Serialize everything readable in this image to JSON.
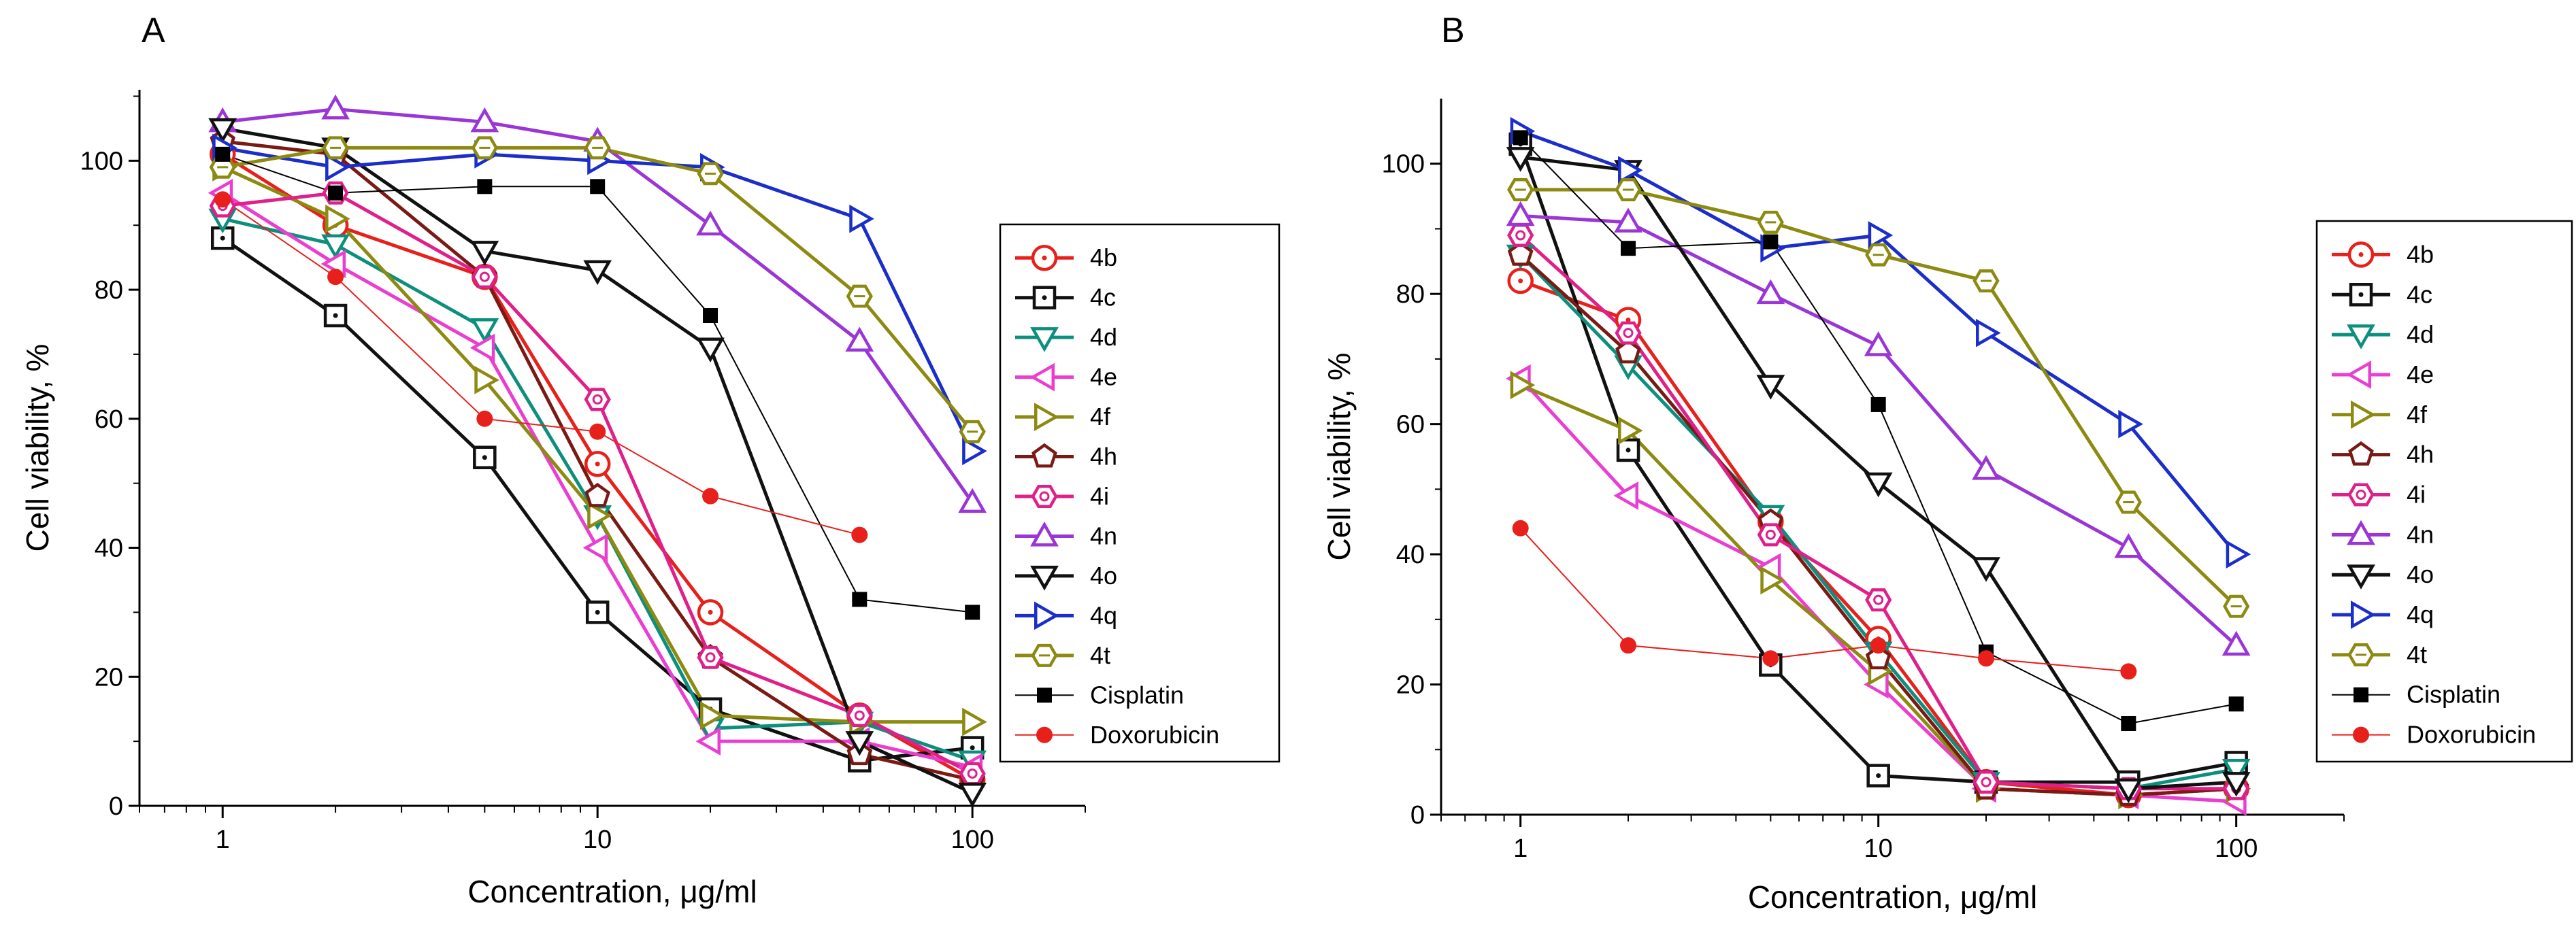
{
  "figure": {
    "panels": [
      "A",
      "B"
    ]
  },
  "styles": {
    "4b": {
      "color": "#e8201c",
      "marker": "circle-dot",
      "width": 5
    },
    "4c": {
      "color": "#111111",
      "marker": "square-dot",
      "width": 5
    },
    "4d": {
      "color": "#0d8f7e",
      "marker": "tri-down",
      "width": 5
    },
    "4e": {
      "color": "#ea3ed1",
      "marker": "tri-left",
      "width": 5
    },
    "4f": {
      "color": "#8c8a10",
      "marker": "tri-right",
      "width": 5
    },
    "4h": {
      "color": "#7a1a14",
      "marker": "pentagon",
      "width": 5
    },
    "4i": {
      "color": "#e0208a",
      "marker": "hexagon-star",
      "width": 5
    },
    "4n": {
      "color": "#9a35d6",
      "marker": "tri-up",
      "width": 5
    },
    "4o": {
      "color": "#111111",
      "marker": "tri-down",
      "width": 5
    },
    "4q": {
      "color": "#1b2ec9",
      "marker": "tri-right",
      "width": 5
    },
    "4t": {
      "color": "#8c8a10",
      "marker": "hexagon",
      "width": 5
    },
    "Cisplatin": {
      "color": "#000000",
      "marker": "filled-square",
      "width": 2
    },
    "Doxorubicin": {
      "color": "#e8201c",
      "marker": "filled-circle",
      "width": 2
    }
  },
  "chart_data": [
    {
      "panel": "A",
      "type": "line",
      "xscale": "log",
      "xlabel": "Concentration, μg/ml",
      "ylabel": "Cell viability, %",
      "xlim": [
        0.6,
        200
      ],
      "ylim": [
        0,
        111
      ],
      "xticks": [
        1,
        10,
        100
      ],
      "xtick_labels": [
        "1",
        "10",
        "100"
      ],
      "yticks": [
        0,
        20,
        40,
        60,
        80,
        100
      ],
      "ytick_labels": [
        "0",
        "20",
        "40",
        "60",
        "80",
        "100"
      ],
      "legend": "right",
      "series": [
        {
          "name": "4b",
          "x": [
            1,
            2,
            5,
            10,
            20,
            50,
            100
          ],
          "y": [
            101,
            90,
            82,
            53,
            30,
            14,
            4
          ]
        },
        {
          "name": "4c",
          "x": [
            1,
            2,
            5,
            10,
            20,
            50,
            100
          ],
          "y": [
            88,
            76,
            54,
            30,
            15,
            7,
            9
          ]
        },
        {
          "name": "4d",
          "x": [
            1,
            2,
            5,
            10,
            20,
            50,
            100
          ],
          "y": [
            91,
            87,
            74,
            45,
            12,
            13,
            7
          ]
        },
        {
          "name": "4e",
          "x": [
            1,
            2,
            5,
            10,
            20,
            50,
            100
          ],
          "y": [
            95,
            84,
            71,
            40,
            10,
            10,
            6
          ]
        },
        {
          "name": "4f",
          "x": [
            1,
            2,
            5,
            10,
            20,
            50,
            100
          ],
          "y": [
            99,
            91,
            66,
            45,
            14,
            13,
            13
          ]
        },
        {
          "name": "4h",
          "x": [
            1,
            2,
            5,
            10,
            20,
            50,
            100
          ],
          "y": [
            103,
            101,
            82,
            48,
            23,
            8,
            4
          ]
        },
        {
          "name": "4i",
          "x": [
            1,
            2,
            5,
            10,
            20,
            50,
            100
          ],
          "y": [
            93,
            95,
            82,
            63,
            23,
            14,
            5
          ]
        },
        {
          "name": "4n",
          "x": [
            1,
            2,
            5,
            10,
            20,
            50,
            100
          ],
          "y": [
            106,
            108,
            106,
            103,
            90,
            72,
            47
          ]
        },
        {
          "name": "4o",
          "x": [
            1,
            2,
            5,
            10,
            20,
            50,
            100
          ],
          "y": [
            105,
            102,
            86,
            83,
            71,
            10,
            2
          ]
        },
        {
          "name": "4q",
          "x": [
            1,
            2,
            5,
            10,
            20,
            50,
            100
          ],
          "y": [
            102,
            99,
            101,
            100,
            99,
            91,
            55
          ]
        },
        {
          "name": "4t",
          "x": [
            1,
            2,
            5,
            10,
            20,
            50,
            100
          ],
          "y": [
            99,
            102,
            102,
            102,
            98,
            79,
            58
          ]
        },
        {
          "name": "Cisplatin",
          "x": [
            1,
            2,
            5,
            10,
            20,
            50,
            100
          ],
          "y": [
            101,
            95,
            96,
            96,
            76,
            32,
            30
          ]
        },
        {
          "name": "Doxorubicin",
          "x": [
            1,
            2,
            5,
            10,
            20,
            50
          ],
          "y": [
            94,
            82,
            60,
            58,
            48,
            42
          ]
        }
      ]
    },
    {
      "panel": "B",
      "type": "line",
      "xscale": "log",
      "xlabel": "Concentration, μg/ml",
      "ylabel": "Cell viability, %",
      "xlim": [
        0.6,
        200
      ],
      "ylim": [
        0,
        110
      ],
      "xticks": [
        1,
        10,
        100
      ],
      "xtick_labels": [
        "1",
        "10",
        "100"
      ],
      "yticks": [
        0,
        20,
        40,
        60,
        80,
        100
      ],
      "ytick_labels": [
        "0",
        "20",
        "40",
        "60",
        "80",
        "100"
      ],
      "legend": "right",
      "series": [
        {
          "name": "4b",
          "x": [
            1,
            2,
            5,
            10,
            20,
            50,
            100
          ],
          "y": [
            82,
            76,
            45,
            27,
            5,
            3,
            4
          ]
        },
        {
          "name": "4c",
          "x": [
            1,
            2,
            5,
            10,
            20,
            50,
            100
          ],
          "y": [
            103,
            56,
            23,
            6,
            5,
            5,
            8
          ]
        },
        {
          "name": "4d",
          "x": [
            1,
            2,
            5,
            10,
            20,
            50,
            100
          ],
          "y": [
            86,
            69,
            46,
            25,
            5,
            4,
            7
          ]
        },
        {
          "name": "4e",
          "x": [
            1,
            2,
            5,
            10,
            20,
            50,
            100
          ],
          "y": [
            67,
            49,
            38,
            20,
            4,
            3,
            2
          ]
        },
        {
          "name": "4f",
          "x": [
            1,
            2,
            5,
            10,
            20,
            50,
            100
          ],
          "y": [
            66,
            59,
            36,
            22,
            4,
            3,
            4
          ]
        },
        {
          "name": "4h",
          "x": [
            1,
            2,
            5,
            10,
            20,
            50,
            100
          ],
          "y": [
            86,
            71,
            45,
            24,
            4,
            3,
            4
          ]
        },
        {
          "name": "4i",
          "x": [
            1,
            2,
            5,
            10,
            20,
            50,
            100
          ],
          "y": [
            89,
            74,
            43,
            33,
            5,
            4,
            4
          ]
        },
        {
          "name": "4n",
          "x": [
            1,
            2,
            5,
            10,
            20,
            50,
            100
          ],
          "y": [
            92,
            91,
            80,
            72,
            53,
            41,
            26
          ]
        },
        {
          "name": "4o",
          "x": [
            1,
            2,
            5,
            10,
            20,
            50,
            100
          ],
          "y": [
            101,
            99,
            66,
            51,
            38,
            4,
            5
          ]
        },
        {
          "name": "4q",
          "x": [
            1,
            2,
            5,
            10,
            20,
            50,
            100
          ],
          "y": [
            105,
            99,
            87,
            89,
            74,
            60,
            40
          ]
        },
        {
          "name": "4t",
          "x": [
            1,
            2,
            5,
            10,
            20,
            50,
            100
          ],
          "y": [
            96,
            96,
            91,
            86,
            82,
            48,
            32
          ]
        },
        {
          "name": "Cisplatin",
          "x": [
            1,
            2,
            5,
            10,
            20,
            50,
            100
          ],
          "y": [
            104,
            87,
            88,
            63,
            25,
            14,
            17
          ]
        },
        {
          "name": "Doxorubicin",
          "x": [
            1,
            2,
            5,
            10,
            20,
            50
          ],
          "y": [
            44,
            26,
            24,
            26,
            24,
            22
          ]
        }
      ]
    }
  ]
}
